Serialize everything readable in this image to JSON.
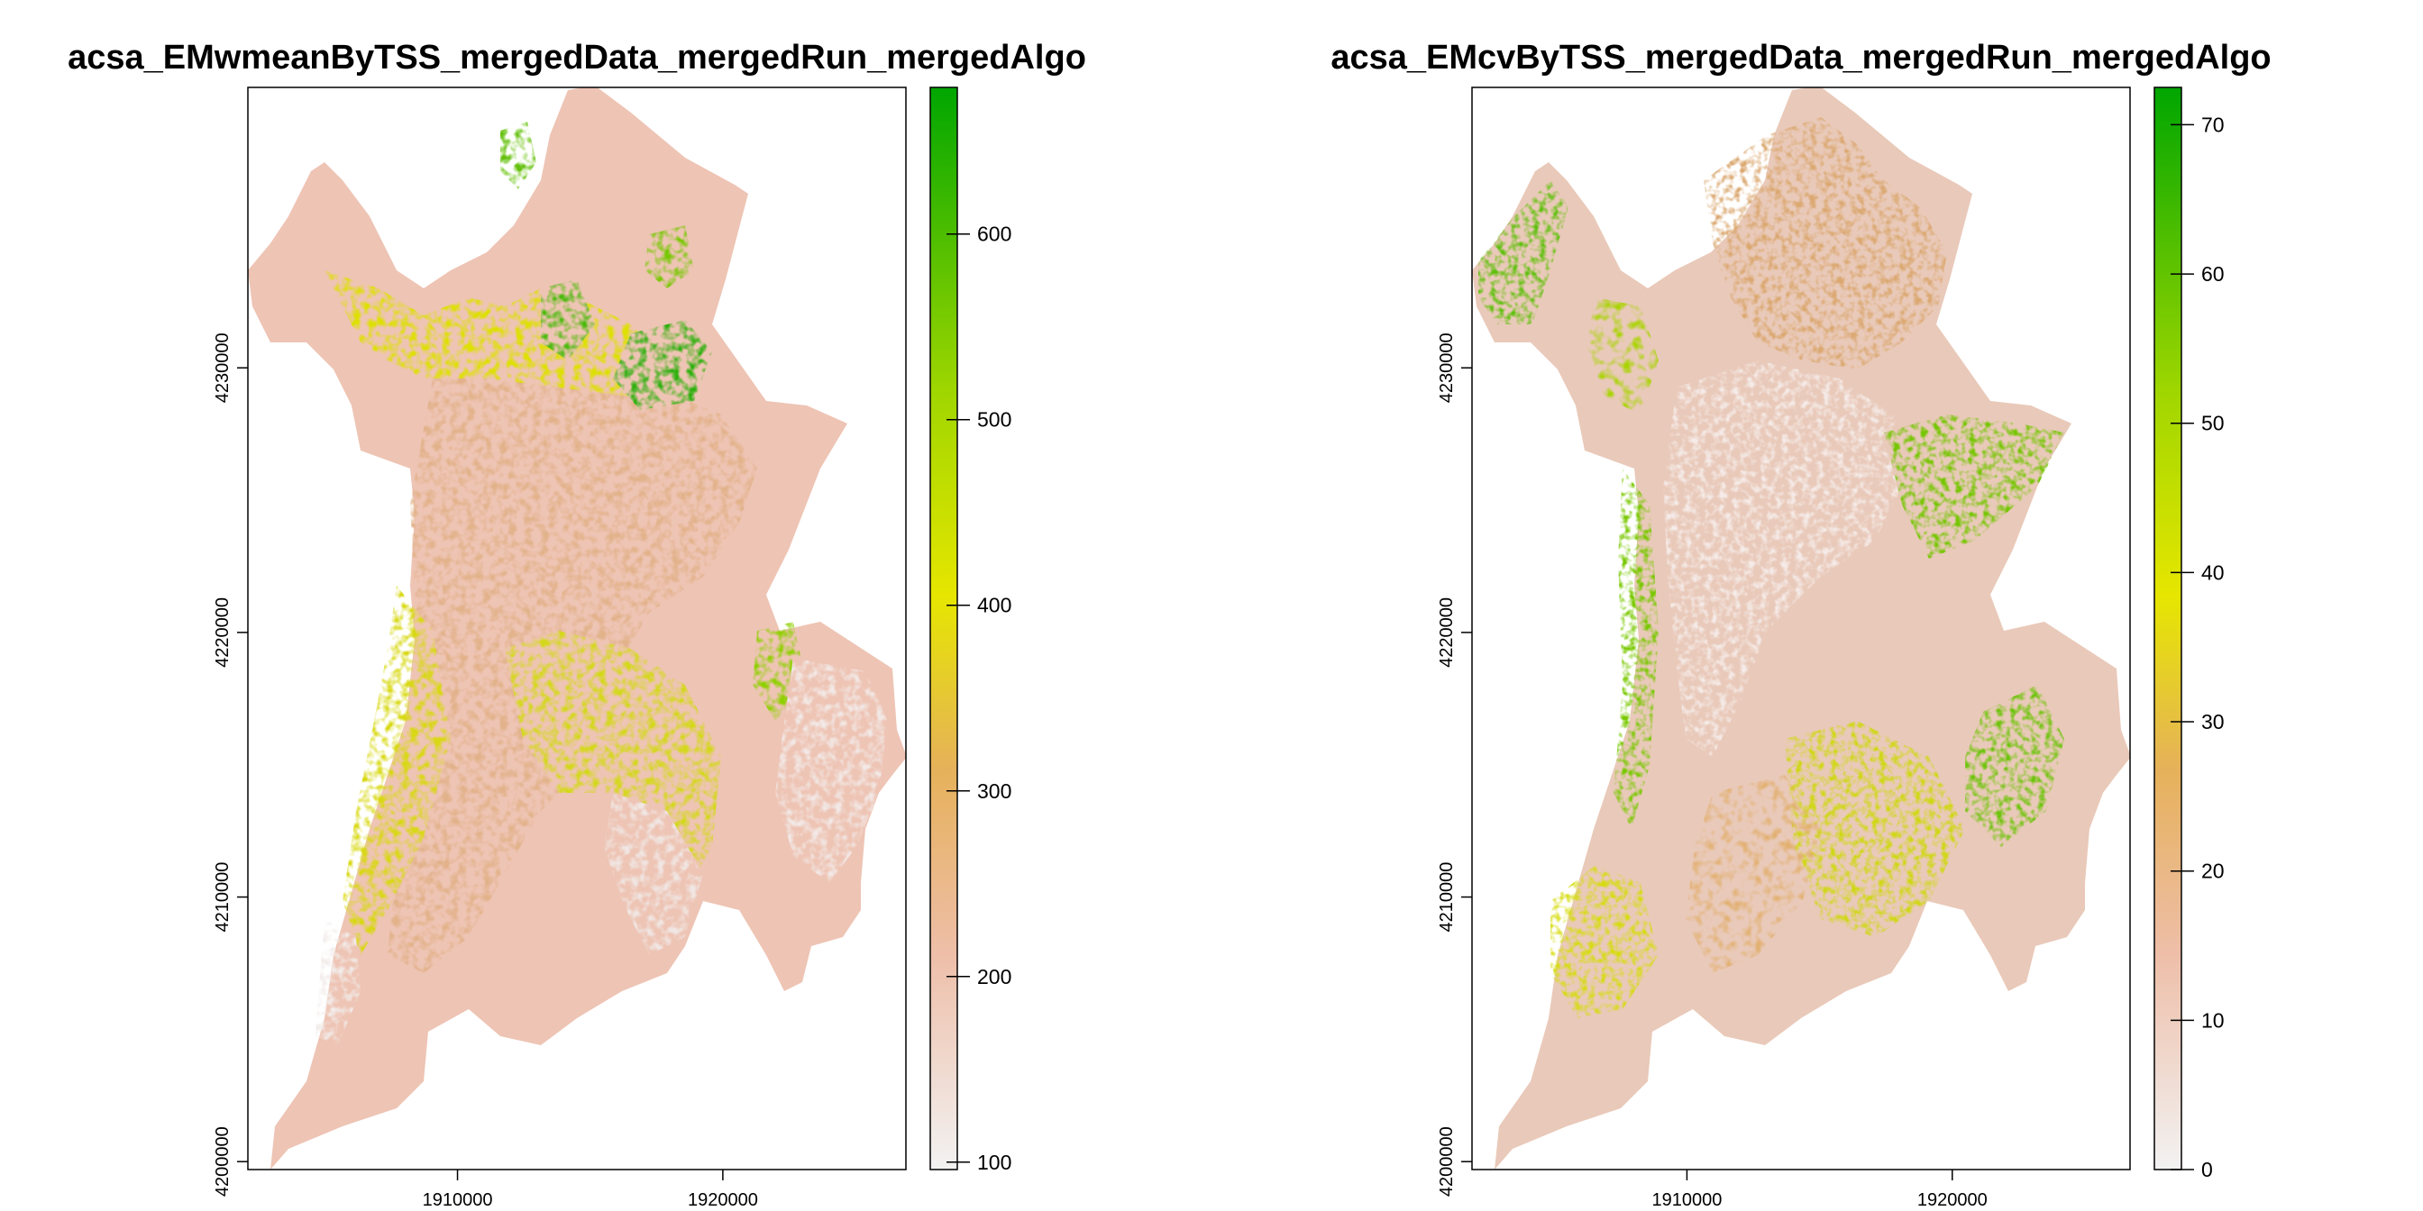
{
  "chart_data": [
    {
      "type": "heatmap",
      "title": "acsa_EMwmeanByTSS_mergedData_mergedRun_mergedAlgo",
      "xlabel": "",
      "ylabel": "",
      "x_ticks": [
        "1910000",
        "1920000"
      ],
      "x_tick_values": [
        1910000,
        1920000
      ],
      "y_ticks": [
        "4230000",
        "4220000",
        "4210000",
        "4200000"
      ],
      "y_tick_values": [
        4230000,
        4220000,
        4210000,
        4200000
      ],
      "xlim": [
        1902100,
        1926900
      ],
      "ylim": [
        4199700,
        4240600
      ],
      "legend": {
        "placement": "right",
        "min": 96,
        "max": 679,
        "ticks": [
          "100",
          "200",
          "300",
          "400",
          "500",
          "600"
        ],
        "tick_values": [
          100,
          200,
          300,
          400,
          500,
          600
        ]
      },
      "colormap": [
        "#f2f2f2",
        "#eebea8",
        "#e6b15a",
        "#e6e600",
        "#9fd600",
        "#00a600"
      ]
    },
    {
      "type": "heatmap",
      "title": "acsa_EMcvByTSS_mergedData_mergedRun_mergedAlgo",
      "xlabel": "",
      "ylabel": "",
      "x_ticks": [
        "1910000",
        "1920000"
      ],
      "x_tick_values": [
        1910000,
        1920000
      ],
      "y_ticks": [
        "4230000",
        "4220000",
        "4210000",
        "4200000"
      ],
      "y_tick_values": [
        4230000,
        4220000,
        4210000,
        4200000
      ],
      "xlim": [
        1901900,
        1926700
      ],
      "ylim": [
        4199700,
        4240600
      ],
      "legend": {
        "placement": "right",
        "min": 0,
        "max": 72.5,
        "ticks": [
          "0",
          "10",
          "20",
          "30",
          "40",
          "50",
          "60",
          "70"
        ],
        "tick_values": [
          0,
          10,
          20,
          30,
          40,
          50,
          60,
          70
        ]
      },
      "colormap": [
        "#f2f2f2",
        "#eebea8",
        "#e6b15a",
        "#e6e600",
        "#9fd600",
        "#00a600"
      ]
    }
  ]
}
